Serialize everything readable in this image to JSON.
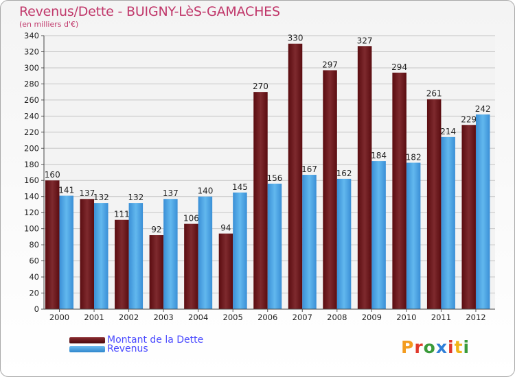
{
  "header": {
    "title": "Revenus/Dette - BUIGNY-LèS-GAMACHES",
    "subtitle": "(en milliers d'€)"
  },
  "chart_data": {
    "type": "bar",
    "categories": [
      "2000",
      "2001",
      "2002",
      "2003",
      "2004",
      "2005",
      "2006",
      "2007",
      "2008",
      "2009",
      "2010",
      "2011",
      "2012"
    ],
    "series": [
      {
        "name": "Montant de la Dette",
        "values": [
          160,
          137,
          111,
          92,
          106,
          94,
          270,
          330,
          297,
          327,
          294,
          261,
          229
        ],
        "color": "#6e1a1e"
      },
      {
        "name": "Revenus",
        "values": [
          141,
          132,
          132,
          137,
          140,
          145,
          156,
          167,
          162,
          184,
          182,
          214,
          242
        ],
        "color": "#4aa3e4"
      }
    ],
    "ylim": [
      0,
      340
    ],
    "ytick_step": 20,
    "grid": true,
    "legend_position": "bottom-left"
  },
  "legend": {
    "items": [
      {
        "label": "Montant de la Dette",
        "color": "#6e1a1e"
      },
      {
        "label": "Revenus",
        "color": "#4aa3e4"
      }
    ]
  },
  "logo": {
    "text": "Proxiti",
    "letter_colors": [
      "#f39c1f",
      "#e0382b",
      "#3a9a3a",
      "#2f7fd8",
      "#e0382b",
      "#f0b417",
      "#3a9a3a"
    ]
  }
}
